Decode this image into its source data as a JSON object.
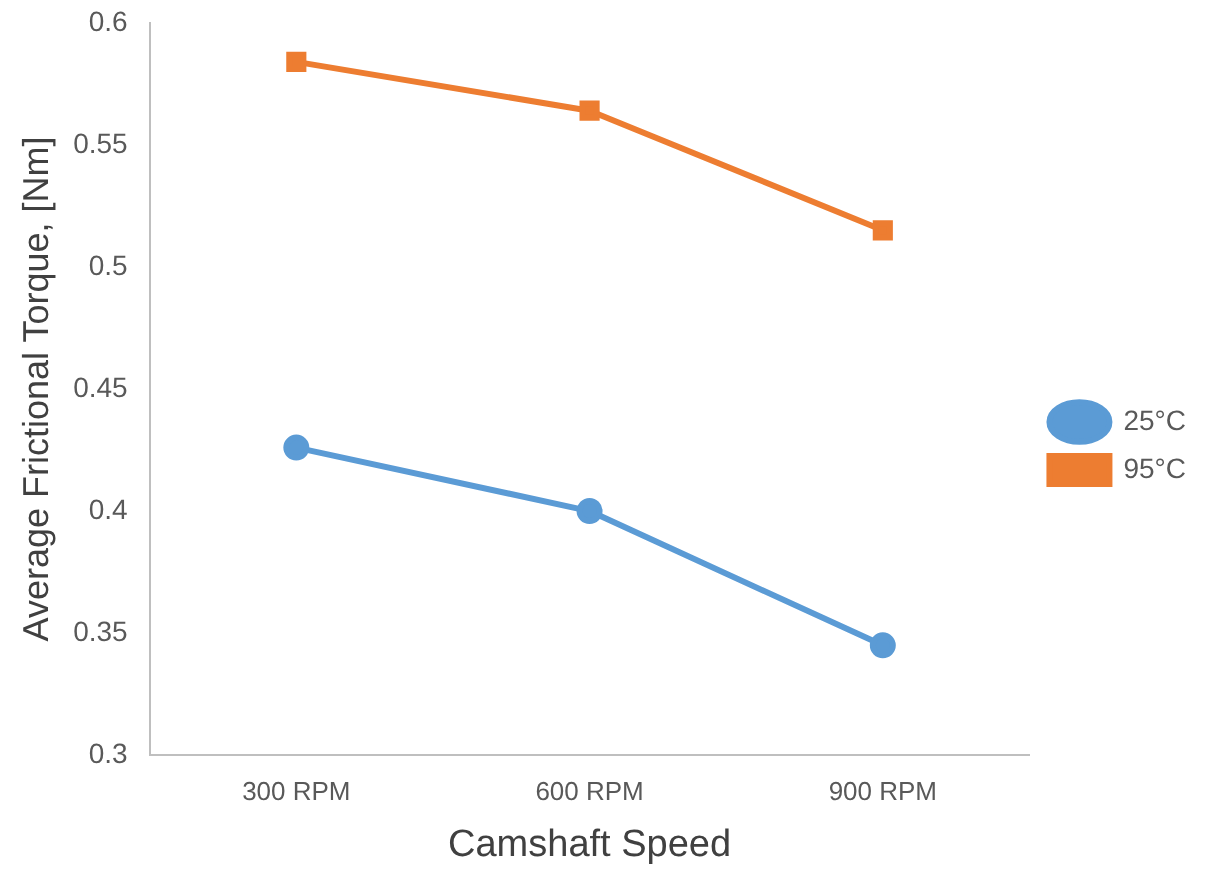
{
  "chart_data": {
    "type": "line",
    "xlabel": "Camshaft Speed",
    "ylabel": "Average Frictional Torque, [Nm]",
    "categories": [
      "300 RPM",
      "600 RPM",
      "900 RPM"
    ],
    "series": [
      {
        "name": "25°C",
        "color": "#5b9bd5",
        "values": [
          0.426,
          0.4,
          0.345
        ],
        "marker": "circle"
      },
      {
        "name": "95°C",
        "color": "#ed7d31",
        "values": [
          0.584,
          0.564,
          0.515
        ],
        "marker": "square"
      }
    ],
    "ylim": [
      0.3,
      0.6
    ],
    "yticks": [
      0.3,
      0.35,
      0.4,
      0.45,
      0.5,
      0.55,
      0.6
    ],
    "grid": false,
    "legend": "right"
  }
}
